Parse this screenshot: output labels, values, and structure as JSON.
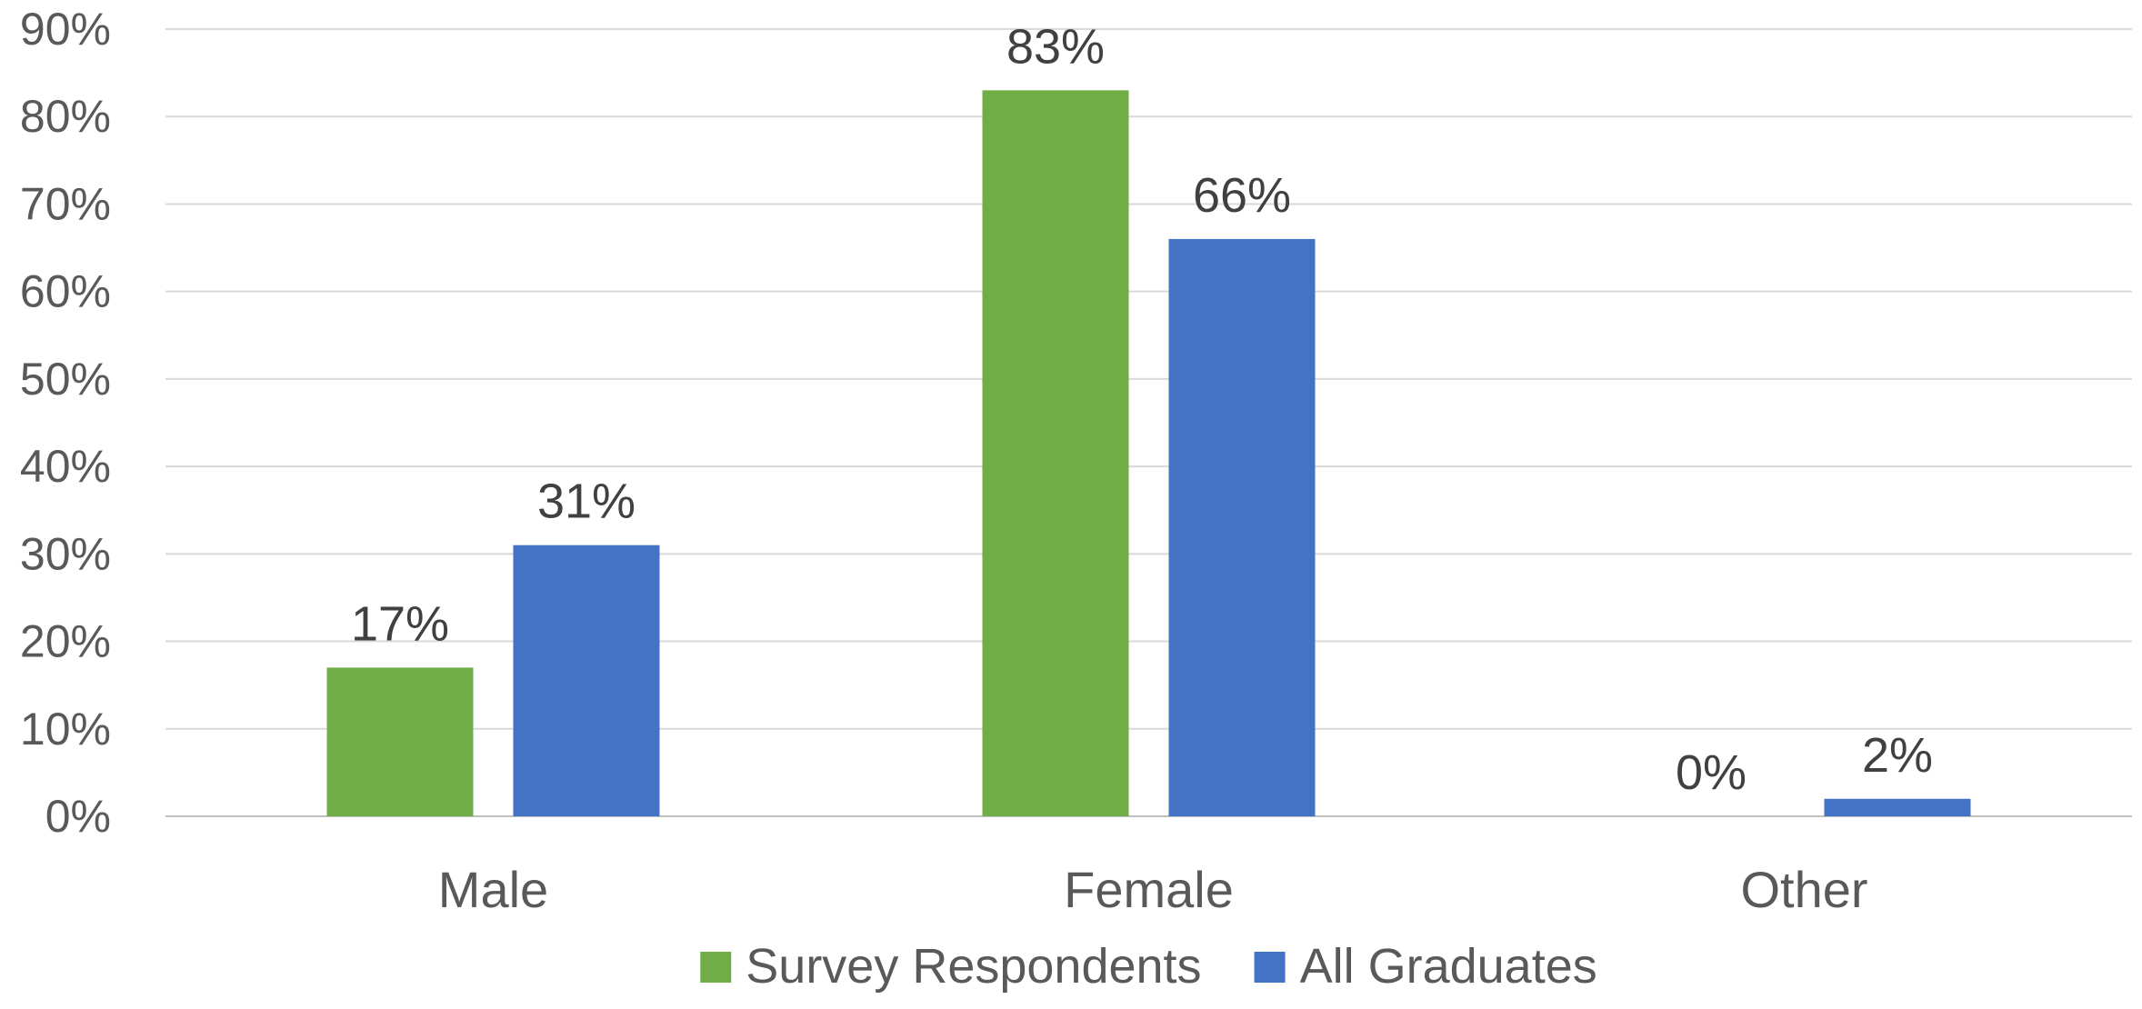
{
  "chart_data": {
    "type": "bar",
    "categories": [
      "Male",
      "Female",
      "Other"
    ],
    "series": [
      {
        "name": "Survey Respondents",
        "values": [
          17,
          83,
          0
        ],
        "labels": [
          "17%",
          "83%",
          "0%"
        ],
        "color": "#70ad47"
      },
      {
        "name": "All Graduates",
        "values": [
          31,
          66,
          2
        ],
        "labels": [
          "31%",
          "66%",
          "2%"
        ],
        "color": "#4472c4"
      }
    ],
    "title": "",
    "xlabel": "",
    "ylabel": "",
    "ylim": [
      0,
      90
    ],
    "yticks": [
      0,
      10,
      20,
      30,
      40,
      50,
      60,
      70,
      80,
      90
    ],
    "ytick_labels": [
      "0%",
      "10%",
      "20%",
      "30%",
      "40%",
      "50%",
      "60%",
      "70%",
      "80%",
      "90%"
    ],
    "grid": true,
    "legend_position": "bottom"
  }
}
